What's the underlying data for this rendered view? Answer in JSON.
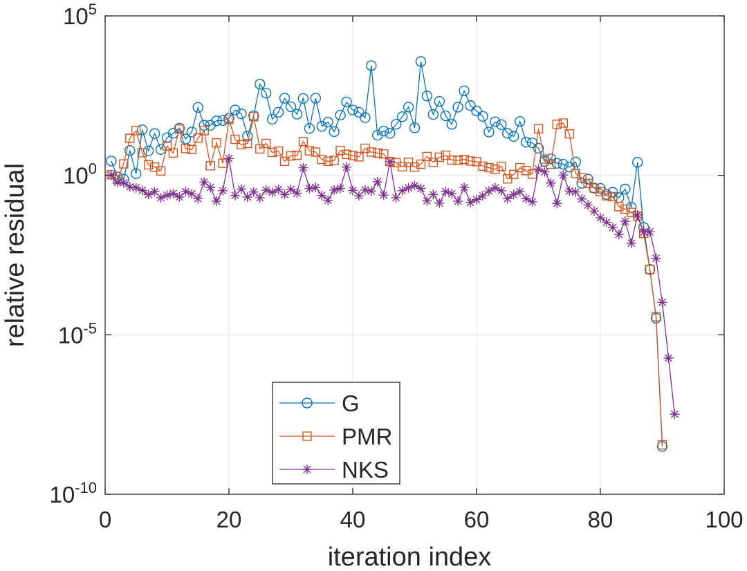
{
  "chart_data": {
    "type": "line",
    "yscale": "log",
    "xlabel": "iteration index",
    "ylabel": "relative residual",
    "xlim": [
      0,
      100
    ],
    "ylim_exponent": [
      -10,
      5
    ],
    "grid": true,
    "legend_position": "lower-left",
    "x_ticks": [
      {
        "value": 0,
        "label": "0"
      },
      {
        "value": 20,
        "label": "20"
      },
      {
        "value": 40,
        "label": "40"
      },
      {
        "value": 60,
        "label": "60"
      },
      {
        "value": 80,
        "label": "80"
      },
      {
        "value": 100,
        "label": "100"
      }
    ],
    "y_ticks": [
      {
        "exponent": 5,
        "base": "10",
        "exp_label": "5"
      },
      {
        "exponent": 0,
        "base": "10",
        "exp_label": "0"
      },
      {
        "exponent": -5,
        "base": "10",
        "exp_label": "-5"
      },
      {
        "exponent": -10,
        "base": "10",
        "exp_label": "-10"
      }
    ],
    "series_note": "values are log10 of relative residual",
    "series": [
      {
        "name": "G",
        "color": "#0072BD",
        "marker": "circle",
        "log10_values": [
          0.45,
          -0.05,
          -0.12,
          0.78,
          0.05,
          1.43,
          0.77,
          1.31,
          0.81,
          1.18,
          1.32,
          1.48,
          1.14,
          1.36,
          2.13,
          1.57,
          1.57,
          1.71,
          1.72,
          1.79,
          2.05,
          1.93,
          1.23,
          1.87,
          2.86,
          2.58,
          1.76,
          1.98,
          2.42,
          2.15,
          1.92,
          2.41,
          1.47,
          2.42,
          1.54,
          1.67,
          1.37,
          1.89,
          2.3,
          2.05,
          1.98,
          1.81,
          3.44,
          1.26,
          1.39,
          1.32,
          1.6,
          1.84,
          2.14,
          1.49,
          3.57,
          2.49,
          1.91,
          2.32,
          1.87,
          1.6,
          2.14,
          2.65,
          2.19,
          2.02,
          1.85,
          1.36,
          1.68,
          1.59,
          1.32,
          1.22,
          1.69,
          1.04,
          1.02,
          0.85,
          0.44,
          0.52,
          0.38,
          0.35,
          0.26,
          0.42,
          -0.25,
          -0.12,
          -0.4,
          -0.41,
          -0.6,
          -0.53,
          -0.7,
          -0.43,
          -1.0,
          0.41,
          -1.63,
          -2.95,
          -4.48,
          -8.5
        ]
      },
      {
        "name": "PMR",
        "color": "#D95319",
        "marker": "square",
        "log10_values": [
          0.02,
          -0.13,
          0.36,
          1.16,
          1.4,
          0.71,
          0.33,
          0.26,
          0.14,
          0.92,
          0.7,
          1.45,
          0.84,
          0.81,
          1.17,
          1.4,
          0.3,
          1.02,
          0.38,
          1.75,
          1.13,
          0.96,
          1.0,
          1.84,
          0.83,
          1.0,
          0.72,
          0.76,
          0.44,
          0.61,
          0.63,
          1.06,
          0.77,
          0.73,
          0.5,
          0.44,
          0.47,
          0.78,
          0.66,
          0.62,
          0.58,
          0.85,
          0.73,
          0.7,
          0.67,
          0.43,
          0.4,
          0.27,
          0.41,
          0.26,
          0.35,
          0.59,
          0.41,
          0.57,
          0.63,
          0.48,
          0.47,
          0.5,
          0.45,
          0.43,
          0.29,
          0.24,
          0.19,
          0.28,
          -0.11,
          0.03,
          0.24,
          0.15,
          0.04,
          1.46,
          0.51,
          0.35,
          1.6,
          1.64,
          1.3,
          0.06,
          -0.08,
          -0.25,
          -0.4,
          -0.51,
          -0.64,
          -0.67,
          -0.98,
          -1.06,
          -1.16,
          -1.28,
          -1.82,
          -2.95,
          -4.43,
          -8.45
        ]
      },
      {
        "name": "NKS",
        "color": "#7E2F8E",
        "marker": "asterisk",
        "log10_values": [
          0.01,
          -0.22,
          -0.23,
          -0.36,
          -0.39,
          -0.47,
          -0.6,
          -0.51,
          -0.7,
          -0.62,
          -0.57,
          -0.68,
          -0.51,
          -0.58,
          -0.73,
          -0.21,
          -0.38,
          -0.81,
          -0.48,
          0.53,
          -0.63,
          -0.43,
          -0.68,
          -0.52,
          -0.7,
          -0.46,
          -0.53,
          -0.44,
          -0.6,
          -0.44,
          -0.56,
          0.24,
          -0.41,
          -0.38,
          -0.63,
          -0.78,
          -0.46,
          -0.41,
          0.26,
          -0.47,
          -0.64,
          -0.46,
          -0.49,
          -0.2,
          -0.62,
          0.43,
          -0.7,
          -0.48,
          -0.39,
          -0.32,
          -0.41,
          -0.8,
          -0.6,
          -0.87,
          -0.51,
          -0.57,
          -0.81,
          -0.38,
          -0.85,
          -0.76,
          -0.64,
          -0.49,
          -0.39,
          -0.48,
          -0.73,
          -0.6,
          -0.51,
          -0.73,
          -0.83,
          0.2,
          0.11,
          -0.24,
          -0.88,
          0.01,
          -0.49,
          -0.52,
          -0.74,
          -0.93,
          -1.12,
          -1.33,
          -1.47,
          -1.63,
          -1.85,
          -1.44,
          -2.13,
          -1.24,
          -1.78,
          -1.77,
          -2.6,
          -3.98,
          -5.73,
          -7.49
        ]
      }
    ]
  }
}
